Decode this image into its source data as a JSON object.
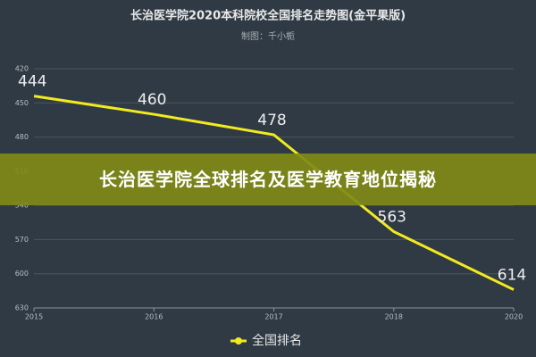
{
  "chart_data": {
    "type": "line",
    "title": "长治医学院2020本科院校全国排名走势图(金平果版)",
    "subtitle": "制图：千小栀",
    "categories": [
      "2015",
      "2016",
      "2017",
      "2018",
      "2020"
    ],
    "series": [
      {
        "name": "全国排名",
        "color": "#f2ea1f",
        "values": [
          444,
          460,
          478,
          563,
          614
        ]
      }
    ],
    "ylim": [
      420,
      630
    ],
    "yticks": [
      420,
      450,
      480,
      510,
      540,
      570,
      600,
      630
    ],
    "inverse": true,
    "grid": true,
    "legend": "bottom"
  },
  "overlay": {
    "banner": "长治医学院全球排名及医学教育地位揭秘"
  }
}
